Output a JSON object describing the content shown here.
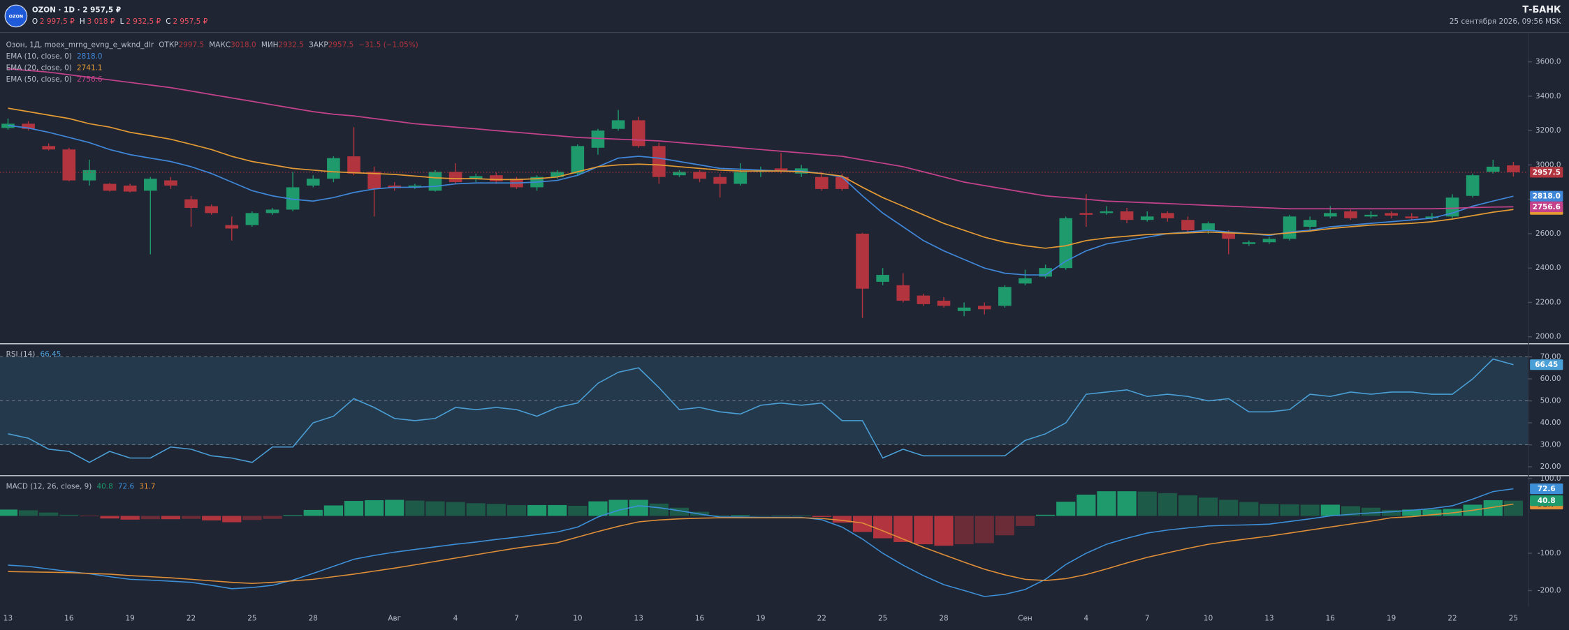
{
  "header": {
    "logo": "OZON",
    "symbol_line": "OZON · 1D · 2 957,5 ₽",
    "ohlc": [
      {
        "label": "О",
        "value": "2 997,5 ₽"
      },
      {
        "label": "Н",
        "value": "3 018 ₽"
      },
      {
        "label": "L",
        "value": "2 932,5 ₽"
      },
      {
        "label": "C",
        "value": "2 957,5 ₽"
      }
    ],
    "brand": "Т-БАНК",
    "datetime": "25 сентября 2026, 09:56 MSK"
  },
  "chart_data": [
    {
      "type": "candlestick",
      "title": "Озон, 1Д, moex_mrng_evng_e_wknd_dlr",
      "stats": [
        {
          "label": "ОТКР",
          "value": "2997.5"
        },
        {
          "label": "МАКС",
          "value": "3018.0"
        },
        {
          "label": "МИН",
          "value": "2932.5"
        },
        {
          "label": "ЗАКР",
          "value": "2957.5"
        }
      ],
      "change": "−31.5 (−1.05%)",
      "categories": [
        "13",
        null,
        null,
        "16",
        null,
        null,
        "19",
        null,
        null,
        "22",
        null,
        null,
        "25",
        null,
        null,
        "28",
        null,
        null,
        null,
        "Авг",
        null,
        null,
        "4",
        null,
        null,
        "7",
        null,
        null,
        "10",
        null,
        null,
        "13",
        null,
        null,
        "16",
        null,
        null,
        "19",
        null,
        null,
        "22",
        null,
        null,
        "25",
        null,
        null,
        "28",
        null,
        null,
        null,
        "Сен",
        null,
        null,
        "4",
        null,
        null,
        "7",
        null,
        null,
        "10",
        null,
        null,
        "13",
        null,
        null,
        "16",
        null,
        null,
        "19",
        null,
        null,
        "22",
        null,
        null,
        "25"
      ],
      "open": [
        3215,
        3240,
        3110,
        3090,
        2910,
        2890,
        2880,
        2850,
        2910,
        2800,
        2760,
        2650,
        2650,
        2720,
        2740,
        2880,
        2920,
        3050,
        2960,
        2880,
        2870,
        2850,
        2960,
        2920,
        2940,
        2920,
        2870,
        2930,
        2950,
        3100,
        3210,
        3260,
        3110,
        2940,
        2960,
        2930,
        2890,
        2960,
        2980,
        2950,
        2930,
        2930,
        2600,
        2320,
        2300,
        2240,
        2210,
        2150,
        2180,
        2180,
        2310,
        2350,
        2400,
        2720,
        2720,
        2730,
        2680,
        2720,
        2680,
        2620,
        2610,
        2540,
        2550,
        2570,
        2640,
        2700,
        2730,
        2700,
        2720,
        2700,
        2690,
        2700,
        2820,
        2960,
        2997.5
      ],
      "high": [
        3270,
        3255,
        3125,
        3100,
        3030,
        2895,
        2890,
        2930,
        2930,
        2820,
        2770,
        2700,
        2730,
        2750,
        2960,
        2940,
        3050,
        3220,
        2990,
        2900,
        2890,
        2970,
        3010,
        2950,
        2955,
        2930,
        2940,
        2970,
        3120,
        3210,
        3320,
        3280,
        3130,
        2970,
        2970,
        2950,
        3010,
        2990,
        3070,
        3000,
        2960,
        2950,
        2605,
        2400,
        2370,
        2250,
        2230,
        2200,
        2200,
        2300,
        2390,
        2420,
        2700,
        2830,
        2760,
        2750,
        2730,
        2730,
        2700,
        2670,
        2620,
        2560,
        2580,
        2710,
        2700,
        2760,
        2740,
        2730,
        2730,
        2720,
        2720,
        2830,
        2950,
        3030,
        3018
      ],
      "low": [
        3205,
        3200,
        3085,
        2905,
        2880,
        2845,
        2840,
        2480,
        2860,
        2640,
        2710,
        2560,
        2640,
        2710,
        2730,
        2870,
        2900,
        2940,
        2700,
        2850,
        2860,
        2845,
        2890,
        2900,
        2890,
        2860,
        2850,
        2920,
        2940,
        3060,
        3200,
        3100,
        2890,
        2930,
        2900,
        2810,
        2880,
        2930,
        2950,
        2930,
        2850,
        2850,
        2110,
        2300,
        2200,
        2180,
        2170,
        2120,
        2130,
        2170,
        2300,
        2340,
        2390,
        2640,
        2710,
        2660,
        2670,
        2670,
        2600,
        2600,
        2480,
        2530,
        2540,
        2560,
        2620,
        2690,
        2680,
        2690,
        2690,
        2680,
        2680,
        2690,
        2810,
        2950,
        2932.5
      ],
      "close": [
        3240,
        3210,
        3090,
        2910,
        2970,
        2850,
        2845,
        2920,
        2880,
        2750,
        2720,
        2630,
        2720,
        2740,
        2870,
        2920,
        3040,
        2950,
        2860,
        2865,
        2880,
        2960,
        2900,
        2935,
        2905,
        2870,
        2930,
        2960,
        3110,
        3200,
        3260,
        3110,
        2930,
        2960,
        2920,
        2890,
        2960,
        2970,
        2965,
        2980,
        2860,
        2860,
        2280,
        2360,
        2210,
        2190,
        2180,
        2170,
        2160,
        2290,
        2340,
        2400,
        2690,
        2710,
        2730,
        2680,
        2700,
        2690,
        2620,
        2660,
        2570,
        2550,
        2570,
        2700,
        2680,
        2720,
        2690,
        2710,
        2705,
        2690,
        2700,
        2810,
        2940,
        2990,
        2957.5
      ],
      "last_label": "2957.5",
      "up_color": "#1e9a6d",
      "down_color": "#b2343f",
      "series": [
        {
          "name": "EMA (10, close, 0)",
          "color": "#3f86d8",
          "last_label": "2818.0",
          "values": [
            3230,
            3215,
            3190,
            3160,
            3130,
            3090,
            3060,
            3040,
            3020,
            2990,
            2950,
            2900,
            2850,
            2820,
            2800,
            2790,
            2810,
            2840,
            2860,
            2870,
            2870,
            2875,
            2890,
            2895,
            2895,
            2895,
            2900,
            2910,
            2940,
            2990,
            3040,
            3050,
            3040,
            3020,
            3000,
            2980,
            2975,
            2970,
            2965,
            2965,
            2950,
            2930,
            2820,
            2720,
            2640,
            2560,
            2500,
            2450,
            2400,
            2370,
            2360,
            2360,
            2440,
            2500,
            2540,
            2560,
            2580,
            2600,
            2610,
            2620,
            2610,
            2600,
            2590,
            2610,
            2620,
            2640,
            2650,
            2660,
            2670,
            2680,
            2690,
            2720,
            2760,
            2790,
            2818
          ]
        },
        {
          "name": "EMA (20, close, 0)",
          "color": "#e39a35",
          "last_label": "2741.1",
          "values": [
            3330,
            3310,
            3290,
            3270,
            3240,
            3220,
            3190,
            3170,
            3150,
            3120,
            3090,
            3050,
            3020,
            3000,
            2980,
            2970,
            2960,
            2955,
            2950,
            2945,
            2935,
            2925,
            2920,
            2920,
            2915,
            2915,
            2920,
            2930,
            2960,
            2990,
            3000,
            3005,
            3000,
            2990,
            2980,
            2970,
            2965,
            2965,
            2965,
            2960,
            2950,
            2935,
            2870,
            2810,
            2760,
            2710,
            2660,
            2620,
            2580,
            2550,
            2530,
            2515,
            2530,
            2560,
            2575,
            2585,
            2595,
            2600,
            2605,
            2610,
            2605,
            2600,
            2595,
            2605,
            2615,
            2630,
            2640,
            2650,
            2655,
            2660,
            2670,
            2685,
            2705,
            2725,
            2741.1
          ]
        },
        {
          "name": "EMA (50, close, 0)",
          "color": "#c4428c",
          "last_label": "2756.6",
          "values": [
            3560,
            3550,
            3540,
            3525,
            3510,
            3495,
            3480,
            3465,
            3450,
            3430,
            3410,
            3390,
            3370,
            3350,
            3330,
            3310,
            3295,
            3285,
            3270,
            3255,
            3240,
            3230,
            3220,
            3210,
            3200,
            3190,
            3180,
            3170,
            3160,
            3155,
            3150,
            3145,
            3140,
            3130,
            3120,
            3110,
            3100,
            3090,
            3080,
            3070,
            3060,
            3050,
            3030,
            3010,
            2990,
            2960,
            2930,
            2900,
            2880,
            2860,
            2840,
            2820,
            2810,
            2800,
            2790,
            2785,
            2780,
            2775,
            2770,
            2765,
            2760,
            2755,
            2750,
            2745,
            2745,
            2745,
            2745,
            2745,
            2745,
            2745,
            2745,
            2748,
            2752,
            2755,
            2756.6
          ]
        }
      ],
      "ylim": [
        1965,
        3768
      ],
      "yticks": [
        {
          "value": 2000,
          "label": "2000.0"
        },
        {
          "value": 2200,
          "label": "2200.0"
        },
        {
          "value": 2400,
          "label": "2400.0"
        },
        {
          "value": 2600,
          "label": "2600.0"
        },
        {
          "value": 2800,
          "label": "2800.0"
        },
        {
          "value": 3000,
          "label": "3000.0"
        },
        {
          "value": 3200,
          "label": "3200.0"
        },
        {
          "value": 3400,
          "label": "3400.0"
        },
        {
          "value": 3600,
          "label": "3600.0"
        }
      ]
    },
    {
      "type": "line",
      "title": "RSI (14)",
      "color": "#4a9fd6",
      "last_label": "66.45",
      "band": [
        30,
        70
      ],
      "mid_level": 50,
      "band_color": "#24394b",
      "values": [
        35,
        33,
        28,
        27,
        22,
        27,
        24,
        24,
        29,
        28,
        25,
        24,
        22,
        29,
        29,
        40,
        43,
        51,
        47,
        42,
        41,
        42,
        47,
        46,
        47,
        46,
        43,
        47,
        49,
        58,
        63,
        65,
        56,
        46,
        47,
        45,
        44,
        48,
        49,
        48,
        49,
        41,
        41,
        24,
        28,
        25,
        25,
        25,
        25,
        25,
        32,
        35,
        40,
        53,
        54,
        55,
        52,
        53,
        52,
        50,
        51,
        45,
        45,
        46,
        53,
        52,
        54,
        53,
        54,
        54,
        53,
        53,
        60,
        69,
        66.45
      ],
      "ylim": [
        16.4,
        75.5
      ],
      "yticks": [
        {
          "value": 20,
          "label": "20.00"
        },
        {
          "value": 30,
          "label": "30.00"
        },
        {
          "value": 40,
          "label": "40.00"
        },
        {
          "value": 50,
          "label": "50.00"
        },
        {
          "value": 60,
          "label": "60.00"
        },
        {
          "value": 70,
          "label": "70.00"
        }
      ]
    },
    {
      "type": "macd",
      "title": "MACD (12, 26, close, 9)",
      "histogram": {
        "last_label": "40.8",
        "colors": {
          "up_rising": "#1e9a6d",
          "up_falling": "#1d5a47",
          "down_falling": "#b2343f",
          "down_rising": "#6c2c37"
        },
        "values": [
          17,
          15,
          9,
          3,
          -1,
          -7,
          -10,
          -9,
          -9,
          -8,
          -12,
          -17,
          -11,
          -8,
          2,
          16,
          28,
          40,
          42,
          43,
          41,
          39,
          37,
          34,
          32,
          29,
          29,
          29,
          27,
          39,
          43,
          43,
          33,
          22,
          11,
          2,
          2,
          1,
          1,
          1,
          -3,
          -18,
          -43,
          -60,
          -70,
          -76,
          -80,
          -76,
          -73,
          -52,
          -27,
          3,
          38,
          57,
          66,
          66,
          65,
          61,
          55,
          49,
          43,
          37,
          32,
          31,
          30,
          30,
          26,
          22,
          16,
          17,
          17,
          19,
          30,
          42,
          40.8
        ]
      },
      "series": [
        {
          "color": "#3d8fd8",
          "last_label": "72.6",
          "values": [
            -132,
            -135,
            -142,
            -149,
            -155,
            -163,
            -170,
            -172,
            -175,
            -178,
            -186,
            -195,
            -192,
            -186,
            -172,
            -154,
            -135,
            -116,
            -106,
            -97,
            -90,
            -83,
            -76,
            -70,
            -63,
            -57,
            -50,
            -43,
            -30,
            -3,
            15,
            27,
            22,
            14,
            5,
            -3,
            -3,
            -4,
            -4,
            -4,
            -10,
            -30,
            -62,
            -100,
            -132,
            -160,
            -184,
            -200,
            -216,
            -210,
            -197,
            -170,
            -130,
            -100,
            -76,
            -60,
            -46,
            -38,
            -32,
            -27,
            -25,
            -24,
            -22,
            -15,
            -8,
            0,
            4,
            8,
            11,
            15,
            20,
            27,
            45,
            65,
            72.6
          ]
        },
        {
          "color": "#e08f38",
          "last_label": "31.7",
          "values": [
            -149,
            -150,
            -151,
            -152,
            -154,
            -156,
            -160,
            -163,
            -166,
            -170,
            -174,
            -178,
            -181,
            -178,
            -174,
            -170,
            -163,
            -156,
            -148,
            -140,
            -131,
            -122,
            -113,
            -104,
            -95,
            -86,
            -79,
            -72,
            -57,
            -42,
            -28,
            -16,
            -11,
            -8,
            -6,
            -5,
            -5,
            -5,
            -5,
            -5,
            -7,
            -12,
            -19,
            -40,
            -62,
            -84,
            -104,
            -124,
            -143,
            -158,
            -170,
            -173,
            -168,
            -157,
            -142,
            -126,
            -111,
            -99,
            -87,
            -76,
            -68,
            -61,
            -54,
            -46,
            -38,
            -30,
            -22,
            -14,
            -5,
            -2,
            3,
            8,
            15,
            23,
            31.7
          ]
        }
      ],
      "ylim": [
        -243,
        105
      ],
      "yticks": [
        {
          "value": -200,
          "label": "-200.0"
        },
        {
          "value": -100,
          "label": "-100.0"
        },
        {
          "value": 100,
          "label": "100.0"
        }
      ]
    }
  ]
}
